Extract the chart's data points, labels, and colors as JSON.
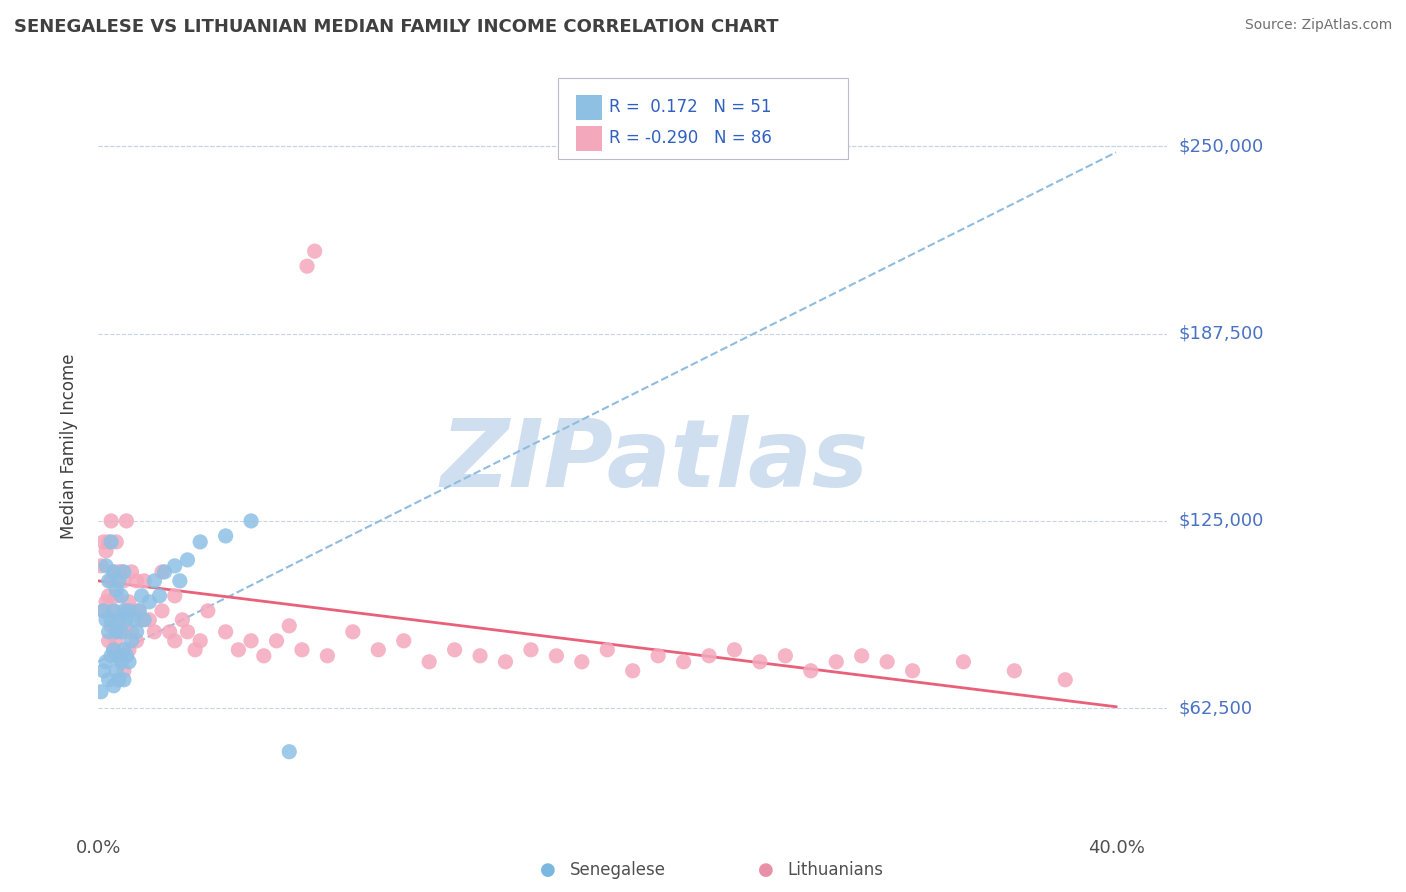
{
  "title": "SENEGALESE VS LITHUANIAN MEDIAN FAMILY INCOME CORRELATION CHART",
  "source": "Source: ZipAtlas.com",
  "ylabel": "Median Family Income",
  "xlim": [
    0.0,
    0.42
  ],
  "ylim": [
    25000,
    275000
  ],
  "yticks": [
    62500,
    125000,
    187500,
    250000
  ],
  "ytick_labels": [
    "$62,500",
    "$125,000",
    "$187,500",
    "$250,000"
  ],
  "xtick_positions": [
    0.0,
    0.1,
    0.2,
    0.3,
    0.4
  ],
  "xtick_show": [
    true,
    false,
    false,
    false,
    true
  ],
  "xtick_labels_show": [
    "0.0%",
    "",
    "",
    "",
    "40.0%"
  ],
  "senegalese_color": "#8ec0e4",
  "lithuanian_color": "#f4a8bc",
  "sen_line_color": "#90bce0",
  "lit_line_color": "#e8607a",
  "background_color": "#ffffff",
  "grid_color": "#c8d4e4",
  "watermark_color": "#d0dff0",
  "title_color": "#404040",
  "ytick_color": "#4a72c4",
  "legend_color": "#3060c0",
  "source_color": "#707070",
  "bottom_legend_sen_color": "#7ab8e0",
  "bottom_legend_lit_color": "#e890a8",
  "senegalese_x": [
    0.001,
    0.002,
    0.002,
    0.003,
    0.003,
    0.003,
    0.004,
    0.004,
    0.004,
    0.005,
    0.005,
    0.005,
    0.006,
    0.006,
    0.006,
    0.006,
    0.007,
    0.007,
    0.007,
    0.008,
    0.008,
    0.008,
    0.008,
    0.009,
    0.009,
    0.009,
    0.01,
    0.01,
    0.01,
    0.01,
    0.011,
    0.011,
    0.012,
    0.012,
    0.013,
    0.014,
    0.015,
    0.016,
    0.017,
    0.018,
    0.02,
    0.022,
    0.024,
    0.026,
    0.03,
    0.032,
    0.035,
    0.04,
    0.05,
    0.06,
    0.075
  ],
  "senegalese_y": [
    68000,
    75000,
    95000,
    78000,
    92000,
    110000,
    72000,
    88000,
    105000,
    80000,
    92000,
    118000,
    70000,
    82000,
    95000,
    108000,
    75000,
    88000,
    102000,
    72000,
    80000,
    92000,
    105000,
    78000,
    88000,
    100000,
    72000,
    82000,
    95000,
    108000,
    80000,
    92000,
    78000,
    95000,
    85000,
    92000,
    88000,
    95000,
    100000,
    92000,
    98000,
    105000,
    100000,
    108000,
    110000,
    105000,
    112000,
    118000,
    120000,
    125000,
    48000
  ],
  "lithuanian_x": [
    0.001,
    0.002,
    0.002,
    0.003,
    0.003,
    0.004,
    0.004,
    0.004,
    0.005,
    0.005,
    0.005,
    0.006,
    0.006,
    0.006,
    0.007,
    0.007,
    0.007,
    0.008,
    0.008,
    0.008,
    0.009,
    0.009,
    0.009,
    0.01,
    0.01,
    0.01,
    0.011,
    0.011,
    0.012,
    0.012,
    0.013,
    0.013,
    0.014,
    0.015,
    0.015,
    0.016,
    0.017,
    0.018,
    0.02,
    0.022,
    0.025,
    0.025,
    0.028,
    0.03,
    0.03,
    0.033,
    0.035,
    0.038,
    0.04,
    0.043,
    0.05,
    0.055,
    0.06,
    0.065,
    0.07,
    0.075,
    0.08,
    0.082,
    0.085,
    0.09,
    0.1,
    0.11,
    0.12,
    0.13,
    0.14,
    0.15,
    0.16,
    0.17,
    0.18,
    0.19,
    0.2,
    0.21,
    0.22,
    0.23,
    0.24,
    0.25,
    0.26,
    0.27,
    0.28,
    0.29,
    0.3,
    0.31,
    0.32,
    0.34,
    0.36,
    0.38
  ],
  "lithuanian_y": [
    110000,
    95000,
    118000,
    98000,
    115000,
    85000,
    100000,
    118000,
    90000,
    105000,
    125000,
    82000,
    95000,
    108000,
    85000,
    100000,
    118000,
    80000,
    92000,
    108000,
    78000,
    90000,
    108000,
    75000,
    88000,
    105000,
    125000,
    95000,
    82000,
    98000,
    88000,
    108000,
    95000,
    85000,
    105000,
    95000,
    92000,
    105000,
    92000,
    88000,
    95000,
    108000,
    88000,
    85000,
    100000,
    92000,
    88000,
    82000,
    85000,
    95000,
    88000,
    82000,
    85000,
    80000,
    85000,
    90000,
    82000,
    210000,
    215000,
    80000,
    88000,
    82000,
    85000,
    78000,
    82000,
    80000,
    78000,
    82000,
    80000,
    78000,
    82000,
    75000,
    80000,
    78000,
    80000,
    82000,
    78000,
    80000,
    75000,
    78000,
    80000,
    78000,
    75000,
    78000,
    75000,
    72000
  ],
  "sen_trend_x": [
    0.0,
    0.4
  ],
  "sen_trend_y": [
    78000,
    248000
  ],
  "lit_trend_x": [
    0.0,
    0.4
  ],
  "lit_trend_y": [
    105000,
    63000
  ]
}
